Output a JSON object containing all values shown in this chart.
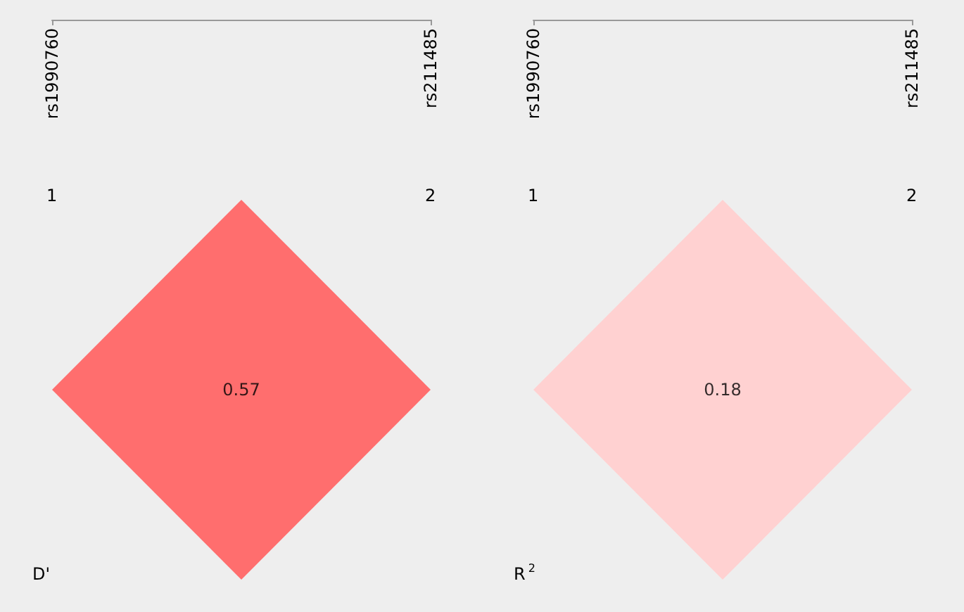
{
  "chart_data": [
    {
      "type": "other",
      "title": "D'",
      "values": [
        0.57
      ],
      "data_labels": true,
      "annotations": [
        "rs1990760",
        "rs211485",
        "1",
        "2"
      ]
    },
    {
      "type": "other",
      "title": "R$^{2}$",
      "values": [
        0.18
      ],
      "data_labels": true,
      "annotations": [
        "rs1990760",
        "rs211485",
        "1",
        "2"
      ]
    }
  ]
}
